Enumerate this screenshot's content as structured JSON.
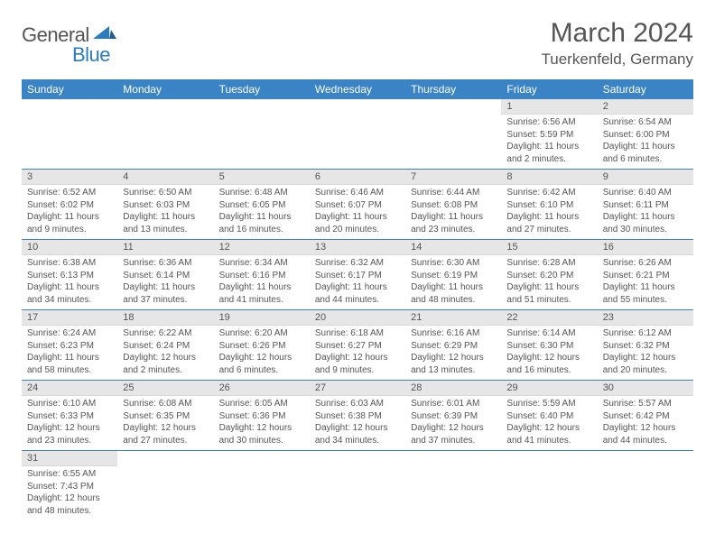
{
  "brand": {
    "general": "General",
    "blue": "Blue"
  },
  "title": {
    "month": "March 2024",
    "location": "Tuerkenfeld, Germany"
  },
  "colors": {
    "header_bg": "#3a83c4",
    "header_text": "#ffffff",
    "daynum_bg": "#e6e6e6",
    "row_border": "#3a83c4",
    "text": "#555555",
    "brand_blue": "#2b7bbf"
  },
  "weekdays": [
    "Sunday",
    "Monday",
    "Tuesday",
    "Wednesday",
    "Thursday",
    "Friday",
    "Saturday"
  ],
  "weeks": [
    [
      null,
      null,
      null,
      null,
      null,
      {
        "n": "1",
        "sr": "6:56 AM",
        "ss": "5:59 PM",
        "dl": "11 hours and 2 minutes."
      },
      {
        "n": "2",
        "sr": "6:54 AM",
        "ss": "6:00 PM",
        "dl": "11 hours and 6 minutes."
      }
    ],
    [
      {
        "n": "3",
        "sr": "6:52 AM",
        "ss": "6:02 PM",
        "dl": "11 hours and 9 minutes."
      },
      {
        "n": "4",
        "sr": "6:50 AM",
        "ss": "6:03 PM",
        "dl": "11 hours and 13 minutes."
      },
      {
        "n": "5",
        "sr": "6:48 AM",
        "ss": "6:05 PM",
        "dl": "11 hours and 16 minutes."
      },
      {
        "n": "6",
        "sr": "6:46 AM",
        "ss": "6:07 PM",
        "dl": "11 hours and 20 minutes."
      },
      {
        "n": "7",
        "sr": "6:44 AM",
        "ss": "6:08 PM",
        "dl": "11 hours and 23 minutes."
      },
      {
        "n": "8",
        "sr": "6:42 AM",
        "ss": "6:10 PM",
        "dl": "11 hours and 27 minutes."
      },
      {
        "n": "9",
        "sr": "6:40 AM",
        "ss": "6:11 PM",
        "dl": "11 hours and 30 minutes."
      }
    ],
    [
      {
        "n": "10",
        "sr": "6:38 AM",
        "ss": "6:13 PM",
        "dl": "11 hours and 34 minutes."
      },
      {
        "n": "11",
        "sr": "6:36 AM",
        "ss": "6:14 PM",
        "dl": "11 hours and 37 minutes."
      },
      {
        "n": "12",
        "sr": "6:34 AM",
        "ss": "6:16 PM",
        "dl": "11 hours and 41 minutes."
      },
      {
        "n": "13",
        "sr": "6:32 AM",
        "ss": "6:17 PM",
        "dl": "11 hours and 44 minutes."
      },
      {
        "n": "14",
        "sr": "6:30 AM",
        "ss": "6:19 PM",
        "dl": "11 hours and 48 minutes."
      },
      {
        "n": "15",
        "sr": "6:28 AM",
        "ss": "6:20 PM",
        "dl": "11 hours and 51 minutes."
      },
      {
        "n": "16",
        "sr": "6:26 AM",
        "ss": "6:21 PM",
        "dl": "11 hours and 55 minutes."
      }
    ],
    [
      {
        "n": "17",
        "sr": "6:24 AM",
        "ss": "6:23 PM",
        "dl": "11 hours and 58 minutes."
      },
      {
        "n": "18",
        "sr": "6:22 AM",
        "ss": "6:24 PM",
        "dl": "12 hours and 2 minutes."
      },
      {
        "n": "19",
        "sr": "6:20 AM",
        "ss": "6:26 PM",
        "dl": "12 hours and 6 minutes."
      },
      {
        "n": "20",
        "sr": "6:18 AM",
        "ss": "6:27 PM",
        "dl": "12 hours and 9 minutes."
      },
      {
        "n": "21",
        "sr": "6:16 AM",
        "ss": "6:29 PM",
        "dl": "12 hours and 13 minutes."
      },
      {
        "n": "22",
        "sr": "6:14 AM",
        "ss": "6:30 PM",
        "dl": "12 hours and 16 minutes."
      },
      {
        "n": "23",
        "sr": "6:12 AM",
        "ss": "6:32 PM",
        "dl": "12 hours and 20 minutes."
      }
    ],
    [
      {
        "n": "24",
        "sr": "6:10 AM",
        "ss": "6:33 PM",
        "dl": "12 hours and 23 minutes."
      },
      {
        "n": "25",
        "sr": "6:08 AM",
        "ss": "6:35 PM",
        "dl": "12 hours and 27 minutes."
      },
      {
        "n": "26",
        "sr": "6:05 AM",
        "ss": "6:36 PM",
        "dl": "12 hours and 30 minutes."
      },
      {
        "n": "27",
        "sr": "6:03 AM",
        "ss": "6:38 PM",
        "dl": "12 hours and 34 minutes."
      },
      {
        "n": "28",
        "sr": "6:01 AM",
        "ss": "6:39 PM",
        "dl": "12 hours and 37 minutes."
      },
      {
        "n": "29",
        "sr": "5:59 AM",
        "ss": "6:40 PM",
        "dl": "12 hours and 41 minutes."
      },
      {
        "n": "30",
        "sr": "5:57 AM",
        "ss": "6:42 PM",
        "dl": "12 hours and 44 minutes."
      }
    ],
    [
      {
        "n": "31",
        "sr": "6:55 AM",
        "ss": "7:43 PM",
        "dl": "12 hours and 48 minutes."
      },
      null,
      null,
      null,
      null,
      null,
      null
    ]
  ],
  "labels": {
    "sunrise": "Sunrise: ",
    "sunset": "Sunset: ",
    "daylight": "Daylight: "
  }
}
